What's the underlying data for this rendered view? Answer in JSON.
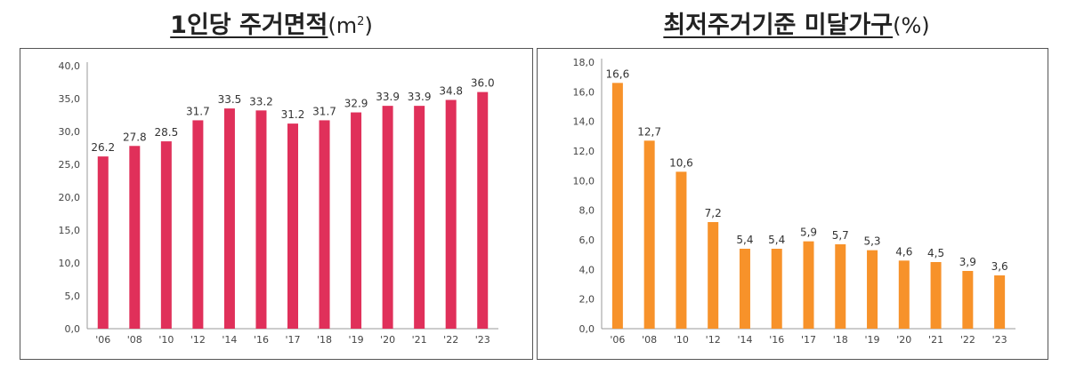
{
  "chart_data": [
    {
      "type": "bar",
      "title": "1인당 주거면적",
      "unit_base": "(m",
      "unit_sup": "2",
      "unit_end": ")",
      "categories": [
        "'06",
        "'08",
        "'10",
        "'12",
        "'14",
        "'16",
        "'17",
        "'18",
        "'19",
        "'20",
        "'21",
        "'22",
        "'23"
      ],
      "values": [
        26.2,
        27.8,
        28.5,
        31.7,
        33.5,
        33.2,
        31.2,
        31.7,
        32.9,
        33.9,
        33.9,
        34.8,
        36.0
      ],
      "ylim": [
        0,
        40
      ],
      "yticks": [
        "0,0",
        "5,0",
        "10,0",
        "15,0",
        "20,0",
        "25,0",
        "30,0",
        "35,0",
        "40,0"
      ],
      "data_labels": [
        "26.2",
        "27.8",
        "28.5",
        "31.7",
        "33.5",
        "33.2",
        "31.2",
        "31.7",
        "32.9",
        "33.9",
        "33.9",
        "34.8",
        "36.0"
      ],
      "color": "#e0305a",
      "grid": false
    },
    {
      "type": "bar",
      "title": "최저주거기준 미달가구",
      "unit": "(%)",
      "categories": [
        "'06",
        "'08",
        "'10",
        "'12",
        "'14",
        "'16",
        "'17",
        "'18",
        "'19",
        "'20",
        "'21",
        "'22",
        "'23"
      ],
      "values": [
        16.6,
        12.7,
        10.6,
        7.2,
        5.4,
        5.4,
        5.9,
        5.7,
        5.3,
        4.6,
        4.5,
        3.9,
        3.6
      ],
      "ylim": [
        0,
        18
      ],
      "yticks": [
        "0,0",
        "2,0",
        "4,0",
        "6,0",
        "8,0",
        "10,0",
        "12,0",
        "14,0",
        "16,0",
        "18,0"
      ],
      "data_labels": [
        "16,6",
        "12,7",
        "10,6",
        "7,2",
        "5,4",
        "5,4",
        "5,9",
        "5,7",
        "5,3",
        "4,6",
        "4,5",
        "3,9",
        "3,6"
      ],
      "color": "#f7922a",
      "grid": false
    }
  ]
}
